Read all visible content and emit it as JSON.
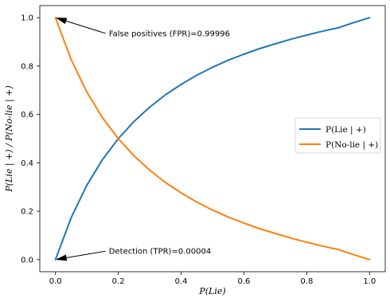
{
  "chart_data": {
    "type": "line",
    "xlabel": "P(Lie)",
    "ylabel": "P(Lie | +) / P(No-lie | +)",
    "xlim": [
      -0.05,
      1.05
    ],
    "ylim": [
      -0.05,
      1.05
    ],
    "xticks": [
      0.0,
      0.2,
      0.4,
      0.6,
      0.8,
      1.0
    ],
    "yticks": [
      0.0,
      0.2,
      0.4,
      0.6,
      0.8,
      1.0
    ],
    "xtick_labels": [
      "0.0",
      "0.2",
      "0.4",
      "0.6",
      "0.8",
      "1.0"
    ],
    "ytick_labels": [
      "0.0",
      "0.2",
      "0.4",
      "0.6",
      "0.8",
      "1.0"
    ],
    "grid": false,
    "legend_position": "center-right",
    "series": [
      {
        "name": "P(Lie | +)",
        "color": "#1f77b4",
        "x": [
          0.0,
          0.05,
          0.1,
          0.15,
          0.2,
          0.25,
          0.3,
          0.35,
          0.4,
          0.45,
          0.5,
          0.55,
          0.6,
          0.65,
          0.7,
          0.75,
          0.8,
          0.85,
          0.9,
          0.95,
          1.0
        ],
        "y": [
          0.0,
          0.174,
          0.308,
          0.414,
          0.5,
          0.571,
          0.63,
          0.681,
          0.724,
          0.762,
          0.795,
          0.824,
          0.849,
          0.872,
          0.892,
          0.911,
          0.928,
          0.944,
          0.958,
          0.98,
          1.0
        ]
      },
      {
        "name": "P(No-lie | +)",
        "color": "#ff7f0e",
        "x": [
          0.0,
          0.05,
          0.1,
          0.15,
          0.2,
          0.25,
          0.3,
          0.35,
          0.4,
          0.45,
          0.5,
          0.55,
          0.6,
          0.65,
          0.7,
          0.75,
          0.8,
          0.85,
          0.9,
          0.95,
          1.0
        ],
        "y": [
          1.0,
          0.826,
          0.692,
          0.586,
          0.5,
          0.429,
          0.37,
          0.319,
          0.276,
          0.238,
          0.205,
          0.176,
          0.151,
          0.128,
          0.108,
          0.089,
          0.072,
          0.056,
          0.042,
          0.02,
          0.0
        ]
      }
    ],
    "annotations": [
      {
        "name": "fpr",
        "text": "False positives (FPR)=0.99996",
        "point": [
          0.0,
          1.0
        ],
        "text_pos": [
          0.17,
          0.935
        ]
      },
      {
        "name": "tpr",
        "text": "Detection (TPR)=0.00004",
        "point": [
          0.0,
          0.0
        ],
        "text_pos": [
          0.17,
          0.035
        ]
      }
    ]
  }
}
